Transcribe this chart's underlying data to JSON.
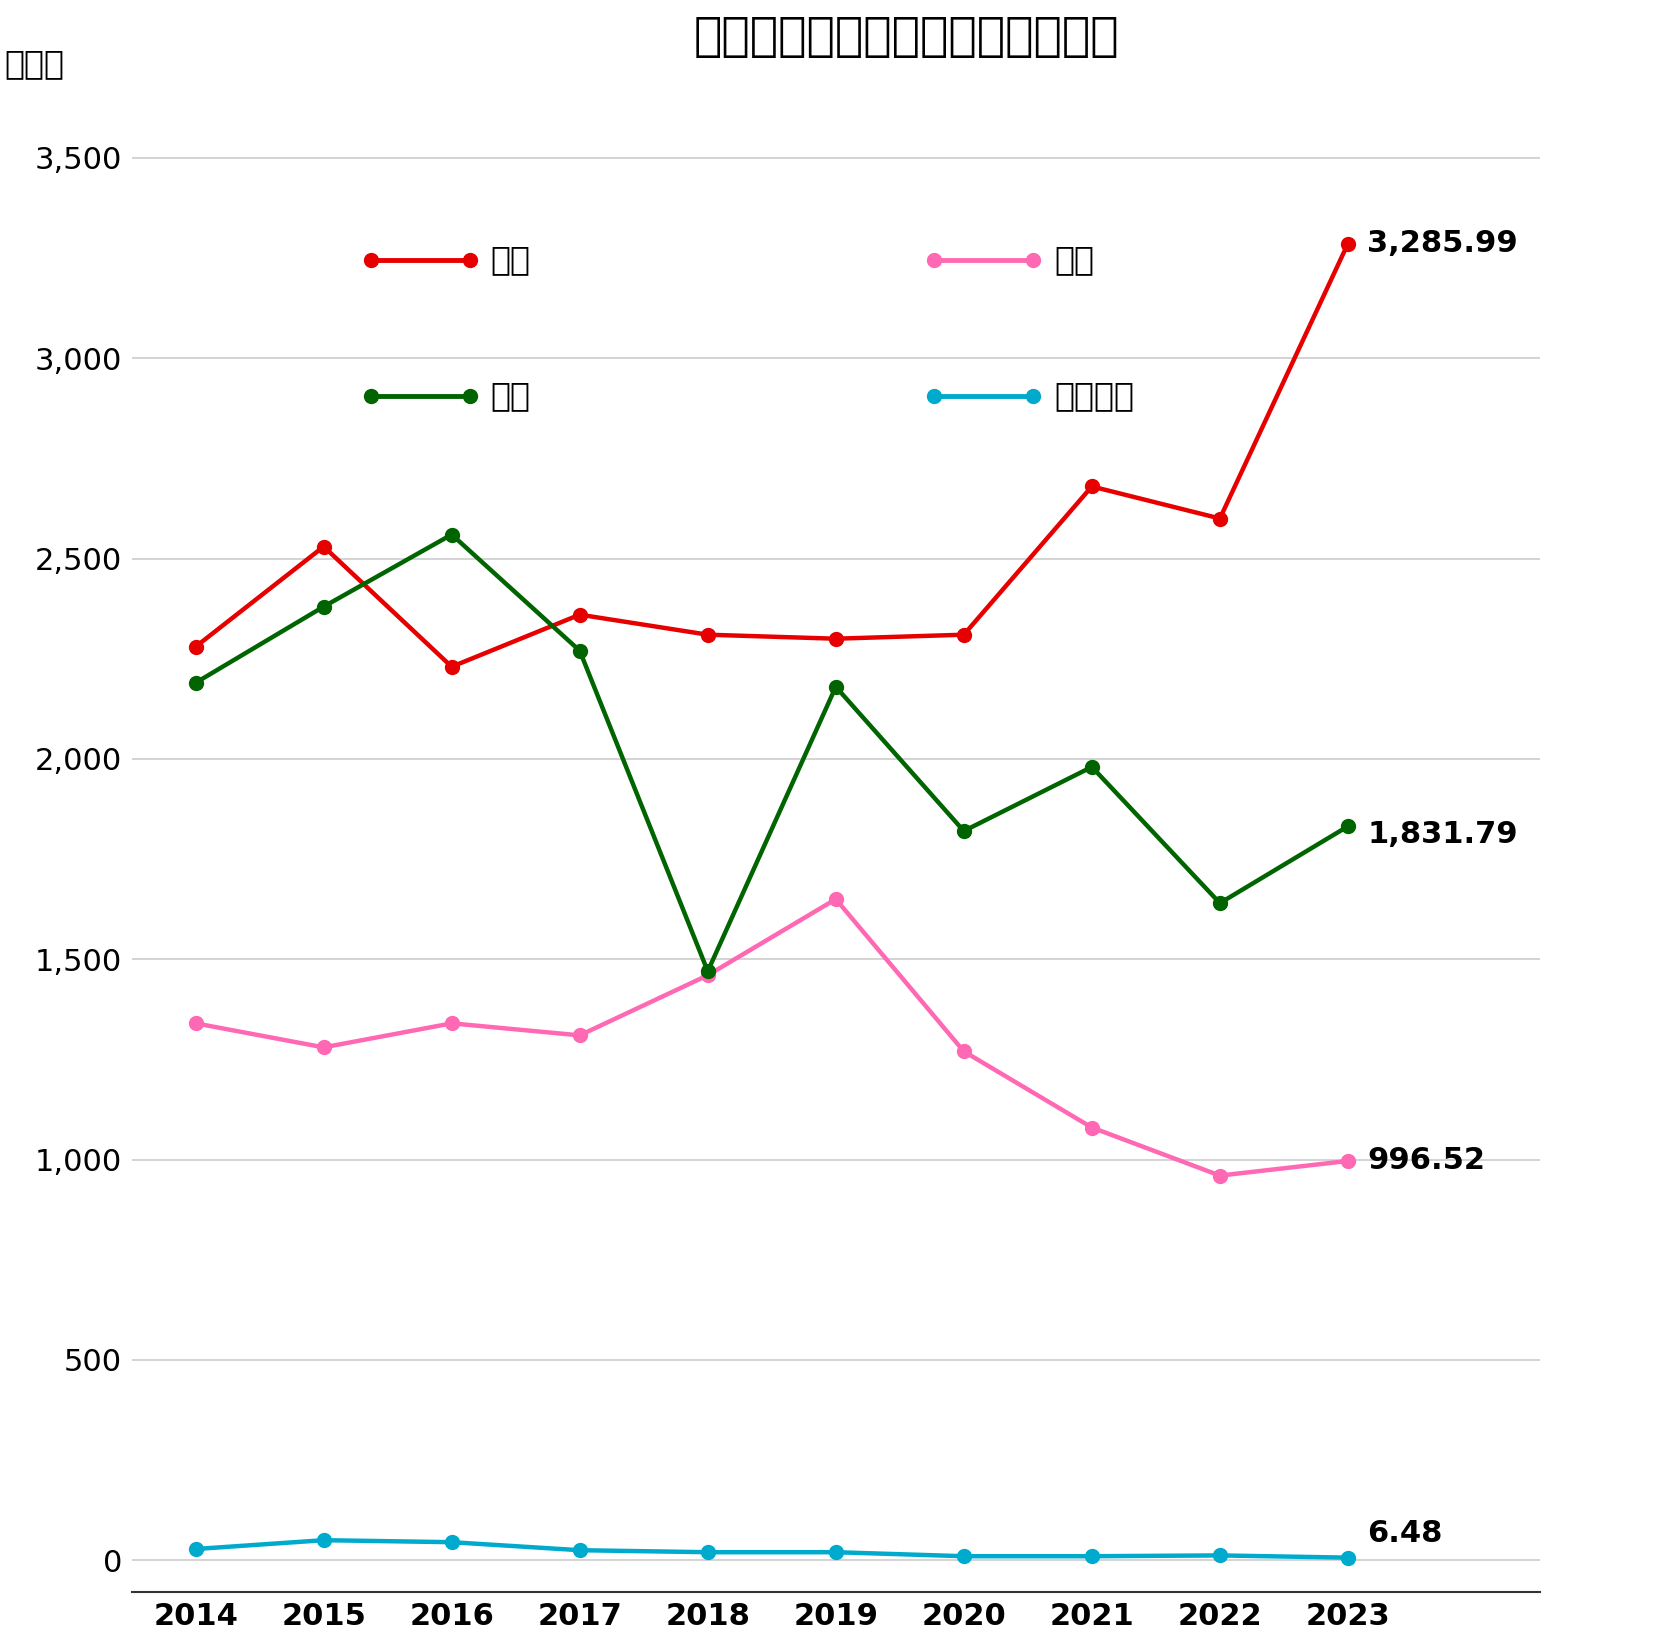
{
  "title": "米中日韓の船舶製造トン数の推移",
  "ylabel": "万トン",
  "years": [
    2014,
    2015,
    2016,
    2017,
    2018,
    2019,
    2020,
    2021,
    2022,
    2023
  ],
  "china": [
    2280,
    2530,
    2230,
    2360,
    2310,
    2300,
    2310,
    2680,
    2600,
    3285.99
  ],
  "japan": [
    1340,
    1280,
    1340,
    1310,
    1460,
    1650,
    1270,
    1080,
    960,
    996.52
  ],
  "korea": [
    2190,
    2380,
    2560,
    2270,
    1470,
    2180,
    1820,
    1980,
    1640,
    1831.79
  ],
  "america": [
    28,
    50,
    45,
    25,
    20,
    20,
    10,
    10,
    12,
    6.48
  ],
  "china_color": "#e60000",
  "japan_color": "#ff69b4",
  "korea_color": "#006400",
  "america_color": "#00aacc",
  "end_labels": {
    "china": "3,285.99",
    "japan": "996.52",
    "korea": "1,831.79",
    "america": "6.48"
  },
  "legend_labels": {
    "china": "中国",
    "japan": "日本",
    "korea": "韓国",
    "america": "アメリカ"
  },
  "yticks": [
    0,
    500,
    1000,
    1500,
    2000,
    2500,
    3000,
    3500
  ],
  "ylim": [
    -80,
    3700
  ],
  "background_color": "#ffffff",
  "grid_color": "#cccccc"
}
